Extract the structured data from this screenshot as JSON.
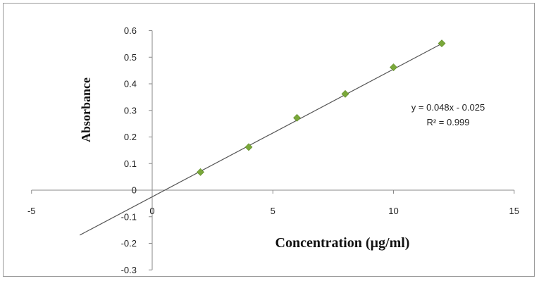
{
  "chart_data": {
    "type": "scatter",
    "title": "",
    "xlabel": "Concentration (µg/ml)",
    "ylabel": "Absorbance",
    "xlim": [
      -5,
      15
    ],
    "ylim": [
      -0.3,
      0.6
    ],
    "x_ticks": [
      -5,
      0,
      5,
      10,
      15
    ],
    "y_ticks": [
      -0.3,
      -0.2,
      -0.1,
      0,
      0.1,
      0.2,
      0.3,
      0.4,
      0.5,
      0.6
    ],
    "x_tick_labels": [
      "-5",
      "0",
      "5",
      "10",
      "15"
    ],
    "y_tick_labels": [
      "-0.3",
      "-0.2",
      "-0.1",
      "0",
      "0.1",
      "0.2",
      "0.3",
      "0.4",
      "0.5",
      "0.6"
    ],
    "grid": false,
    "series": [
      {
        "x": [
          2,
          4,
          6,
          8,
          10,
          12
        ],
        "y": [
          0.068,
          0.162,
          0.272,
          0.362,
          0.462,
          0.552
        ],
        "color": "#7aa83a",
        "marker": "diamond"
      }
    ],
    "trendline": {
      "slope": 0.048,
      "intercept": -0.025,
      "x_range": [
        -3,
        12
      ],
      "color": "#555555"
    },
    "annotations": {
      "equation": "y = 0.048x - 0.025",
      "r_squared": "R² = 0.999"
    }
  }
}
